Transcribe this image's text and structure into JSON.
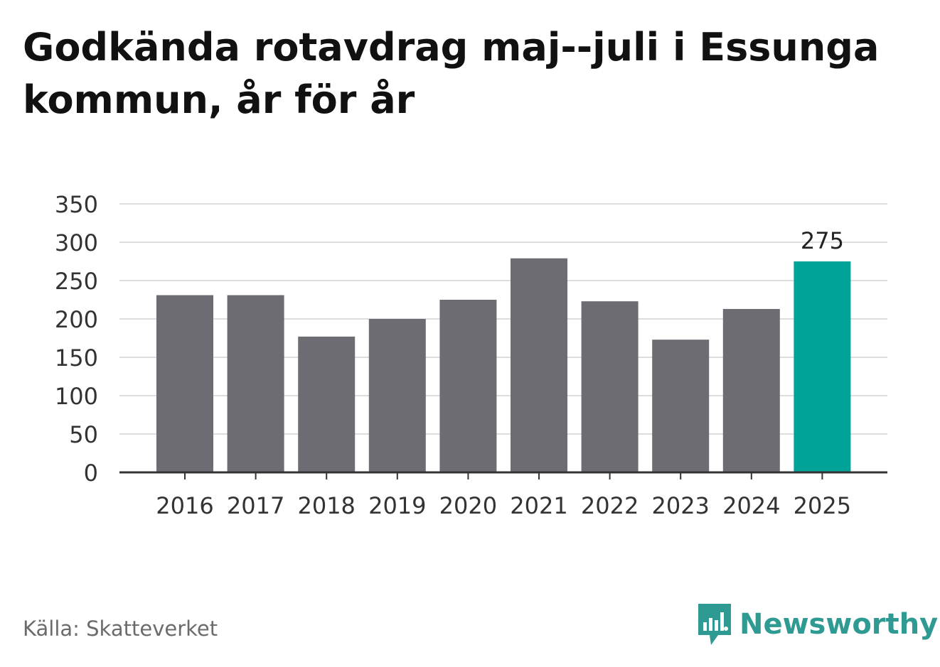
{
  "title": "Godkända rotavdrag maj--juli i Essunga kommun, år för år",
  "source": "Källa: Skatteverket",
  "brand": {
    "name": "Newsworthy",
    "icon": "newsworthy-logo-icon",
    "color": "#2e9a91"
  },
  "colors": {
    "bar": "#6d6c72",
    "highlight": "#00a398",
    "grid": "#dddddd",
    "axis": "#333333",
    "text": "#333333"
  },
  "chart_data": {
    "type": "bar",
    "title": "Godkända rotavdrag maj--juli i Essunga kommun, år för år",
    "xlabel": "",
    "ylabel": "",
    "categories": [
      "2016",
      "2017",
      "2018",
      "2019",
      "2020",
      "2021",
      "2022",
      "2023",
      "2024",
      "2025"
    ],
    "values": [
      231,
      231,
      177,
      200,
      225,
      279,
      223,
      173,
      213,
      275
    ],
    "highlight_index": 9,
    "data_labels": [
      {
        "index": 9,
        "text": "275"
      }
    ],
    "ylim": [
      0,
      350
    ],
    "yticks": [
      0,
      50,
      100,
      150,
      200,
      250,
      300,
      350
    ],
    "grid": true,
    "legend": "none"
  }
}
